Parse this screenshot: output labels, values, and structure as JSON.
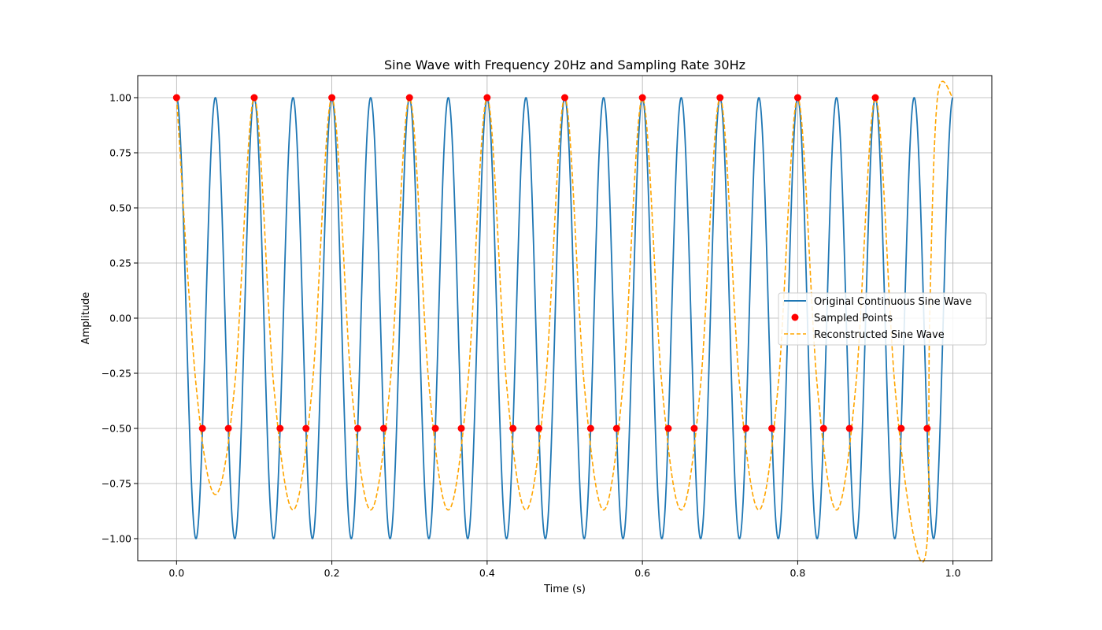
{
  "chart_data": {
    "type": "line",
    "title": "Sine Wave with Frequency 20Hz and Sampling Rate 30Hz",
    "xlabel": "Time (s)",
    "ylabel": "Amplitude",
    "xlim": [
      -0.05,
      1.05
    ],
    "ylim": [
      -1.1,
      1.1
    ],
    "x_ticks": [
      "0.0",
      "0.2",
      "0.4",
      "0.6",
      "0.8",
      "1.0"
    ],
    "x_tick_values": [
      0.0,
      0.2,
      0.4,
      0.6,
      0.8,
      1.0
    ],
    "y_ticks": [
      "1.00",
      "0.75",
      "0.50",
      "0.25",
      "0.00",
      "−0.25",
      "−0.50",
      "−0.75",
      "−1.00"
    ],
    "y_tick_values": [
      1.0,
      0.75,
      0.5,
      0.25,
      0.0,
      -0.25,
      -0.5,
      -0.75,
      -1.0
    ],
    "grid": true,
    "legend_position": "center-right",
    "series": [
      {
        "name": "Original Continuous Sine Wave",
        "kind": "line",
        "style": "solid",
        "color": "#1f77b4",
        "function": "cos(2*pi*20*t)",
        "t_range": [
          0,
          1
        ]
      },
      {
        "name": "Sampled Points",
        "kind": "scatter",
        "color": "#ff0000",
        "x": [
          0.0,
          0.0333,
          0.0667,
          0.1,
          0.1333,
          0.1667,
          0.2,
          0.2333,
          0.2667,
          0.3,
          0.3333,
          0.3667,
          0.4,
          0.4333,
          0.4667,
          0.5,
          0.5333,
          0.5667,
          0.6,
          0.6333,
          0.6667,
          0.7,
          0.7333,
          0.7667,
          0.8,
          0.8333,
          0.8667,
          0.9,
          0.9333,
          0.9667
        ],
        "y": [
          1.0,
          -0.5,
          -0.5,
          1.0,
          -0.5,
          -0.5,
          1.0,
          -0.5,
          -0.5,
          1.0,
          -0.5,
          -0.5,
          1.0,
          -0.5,
          -0.5,
          1.0,
          -0.5,
          -0.5,
          1.0,
          -0.5,
          -0.5,
          1.0,
          -0.5,
          -0.5,
          1.0,
          -0.5,
          -0.5,
          1.0,
          -0.5,
          -0.5
        ]
      },
      {
        "name": "Reconstructed Sine Wave",
        "kind": "line",
        "style": "dashed",
        "color": "#ffa500",
        "x": [
          0.0,
          0.025,
          0.05,
          0.075,
          0.1,
          0.125,
          0.15,
          0.175,
          0.2,
          0.225,
          0.25,
          0.275,
          0.3,
          0.325,
          0.35,
          0.375,
          0.4,
          0.425,
          0.45,
          0.475,
          0.5,
          0.525,
          0.55,
          0.575,
          0.6,
          0.625,
          0.65,
          0.675,
          0.7,
          0.725,
          0.75,
          0.775,
          0.8,
          0.825,
          0.85,
          0.875,
          0.9,
          0.925,
          0.95,
          0.967,
          0.97,
          0.98,
          1.0
        ],
        "y": [
          1.0,
          -0.3,
          -0.8,
          -0.3,
          1.0,
          -0.3,
          -0.87,
          -0.3,
          1.0,
          -0.3,
          -0.87,
          -0.3,
          1.0,
          -0.3,
          -0.87,
          -0.3,
          1.0,
          -0.3,
          -0.87,
          -0.3,
          1.0,
          -0.3,
          -0.87,
          -0.3,
          1.0,
          -0.3,
          -0.87,
          -0.3,
          1.0,
          -0.3,
          -0.87,
          -0.3,
          1.0,
          -0.3,
          -0.87,
          -0.3,
          1.0,
          -0.3,
          -1.0,
          -1.0,
          0.0,
          1.0,
          1.0
        ]
      }
    ]
  }
}
